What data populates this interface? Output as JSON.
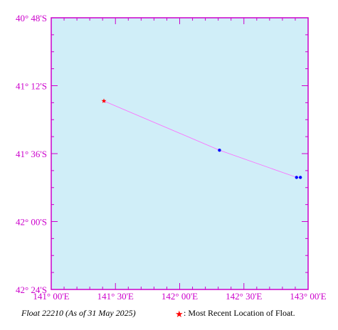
{
  "caption": {
    "float_title": "Float 22210 (As of 31 May 2025)",
    "legend_text": ": Most Recent Location of Float."
  },
  "colors": {
    "plot_background": "#d0eef8",
    "axis_and_ticks": "#cc00cc",
    "track_line": "#ff66ff",
    "track_points": "#0000ff",
    "latest_marker": "#ff0000"
  },
  "chart_data": {
    "type": "scatter",
    "xlabel": "",
    "ylabel": "",
    "grid": false,
    "legend_placement": "bottom-right",
    "xlim": [
      141.0,
      143.0
    ],
    "ylim": [
      -42.4,
      -40.8
    ],
    "x_ticks": [
      {
        "value": 141.0,
        "label": "141° 00'E"
      },
      {
        "value": 141.5,
        "label": "141° 30'E"
      },
      {
        "value": 142.0,
        "label": "142° 00'E"
      },
      {
        "value": 142.5,
        "label": "142° 30'E"
      },
      {
        "value": 143.0,
        "label": "143° 00'E"
      }
    ],
    "y_ticks": [
      {
        "value": -40.8,
        "label": "40° 48'S"
      },
      {
        "value": -41.2,
        "label": "41° 12'S"
      },
      {
        "value": -41.6,
        "label": "41° 36'S"
      },
      {
        "value": -42.0,
        "label": "42° 00'S"
      },
      {
        "value": -42.4,
        "label": "42° 24'S"
      }
    ],
    "track": [
      {
        "lon": 142.94,
        "lat": -41.74
      },
      {
        "lon": 142.91,
        "lat": -41.74
      },
      {
        "lon": 142.31,
        "lat": -41.58
      },
      {
        "lon": 141.41,
        "lat": -41.29
      }
    ],
    "latest_position": {
      "lon": 141.41,
      "lat": -41.29
    }
  }
}
